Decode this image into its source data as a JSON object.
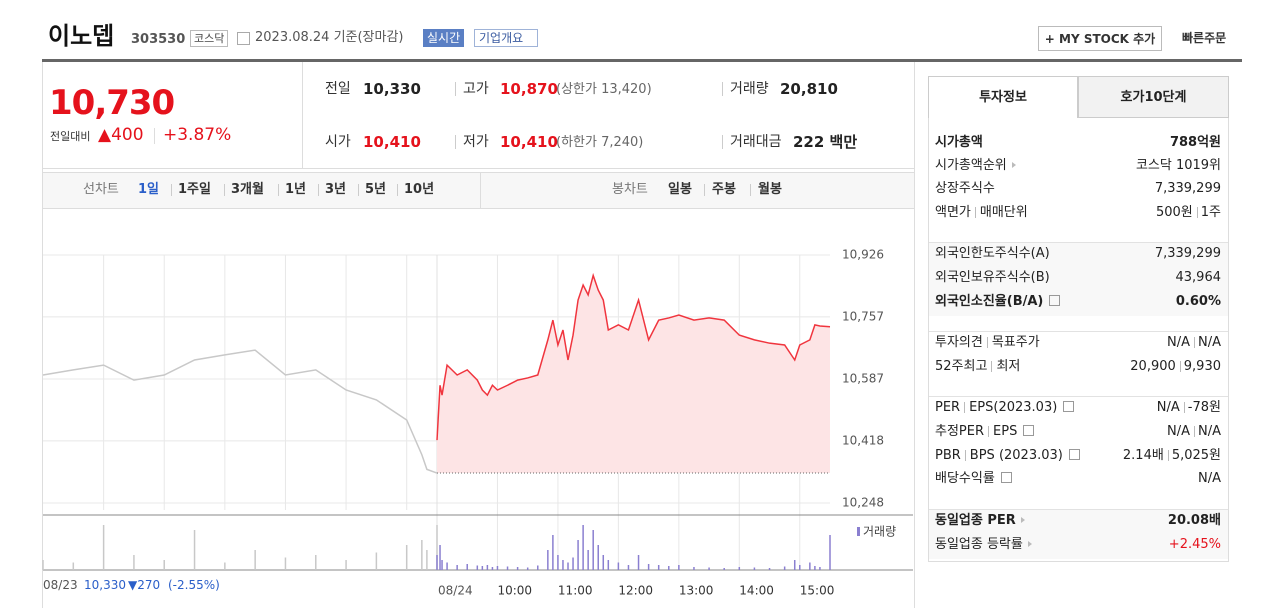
{
  "header": {
    "name": "이노뎁",
    "code": "303530",
    "market": "코스닥",
    "date": "2023.08.24 기준(장마감)",
    "realtime": "실시간",
    "company": "기업개요",
    "my_stock": "+ MY STOCK 추가",
    "quick_order": "빠른주문"
  },
  "price": {
    "current": "10,730",
    "change_label": "전일대비",
    "change": "▲400",
    "rate": "+3.87%"
  },
  "summary": {
    "rows": [
      [
        {
          "label": "전일",
          "value": "10,330"
        },
        {
          "label": "고가",
          "value": "10,870",
          "extra": "(상한가 13,420)",
          "color": "#e5121c"
        },
        {
          "label": "거래량",
          "value": "20,810"
        }
      ],
      [
        {
          "label": "시가",
          "value": "10,410",
          "color": "#e5121c"
        },
        {
          "label": "저가",
          "value": "10,410",
          "extra": "(하한가 7,240)",
          "color": "#e5121c"
        },
        {
          "label": "거래대금",
          "value": "222 백만"
        }
      ]
    ]
  },
  "chart_tabs": {
    "line_label": "선차트",
    "line_periods": [
      "1일",
      "1주일",
      "3개월",
      "1년",
      "3년",
      "5년",
      "10년"
    ],
    "selected": 0,
    "candle_label": "봉차트",
    "candle_periods": [
      "일봉",
      "주봉",
      "월봉"
    ]
  },
  "chart": {
    "type": "line",
    "prev": {
      "x": [
        9,
        9.5,
        10,
        10.5,
        11,
        11.5,
        12,
        12.5,
        13,
        13.5,
        14,
        14.5,
        15,
        15.25,
        15.3333,
        15.5
      ],
      "values": [
        10598,
        10612,
        10625,
        10584,
        10598,
        10639,
        10653,
        10666,
        10598,
        10612,
        10557,
        10530,
        10475,
        10380,
        10340,
        10330
      ],
      "volume": [
        200,
        150,
        900,
        300,
        200,
        800,
        150,
        400,
        250,
        300,
        200,
        350,
        500,
        600,
        400,
        900
      ],
      "color": "#c8c8c8"
    },
    "today": {
      "x": [
        9,
        9.05,
        9.0833,
        9.1667,
        9.3333,
        9.5,
        9.6667,
        9.75,
        9.8333,
        9.9167,
        10,
        10.1667,
        10.3333,
        10.5,
        10.6667,
        10.8333,
        10.9167,
        11,
        11.0833,
        11.1667,
        11.25,
        11.3333,
        11.4167,
        11.5,
        11.5833,
        11.6667,
        11.75,
        11.8333,
        12,
        12.1667,
        12.3333,
        12.5,
        12.6667,
        12.8333,
        13,
        13.25,
        13.5,
        13.75,
        14,
        14.25,
        14.5,
        14.75,
        14.9167,
        15,
        15.1667,
        15.25,
        15.3333,
        15.5
      ],
      "values": [
        10420,
        10570,
        10543,
        10625,
        10598,
        10612,
        10584,
        10557,
        10543,
        10570,
        10557,
        10570,
        10584,
        10590,
        10598,
        10694,
        10748,
        10680,
        10721,
        10639,
        10707,
        10803,
        10844,
        10817,
        10870,
        10830,
        10803,
        10721,
        10735,
        10721,
        10803,
        10694,
        10748,
        10754,
        10762,
        10748,
        10754,
        10748,
        10707,
        10694,
        10685,
        10680,
        10639,
        10680,
        10694,
        10735,
        10732,
        10730
      ],
      "volume": [
        300,
        500,
        200,
        150,
        100,
        120,
        90,
        80,
        100,
        60,
        80,
        70,
        60,
        50,
        90,
        400,
        700,
        300,
        200,
        150,
        250,
        600,
        900,
        400,
        800,
        500,
        300,
        200,
        150,
        100,
        300,
        120,
        100,
        80,
        100,
        60,
        50,
        40,
        60,
        50,
        40,
        70,
        200,
        100,
        150,
        80,
        60,
        700
      ],
      "color": "#f0353e",
      "fill": "#fde4e5"
    },
    "base": 10330,
    "xlim": [
      9,
      15.5
    ],
    "xticks": [
      {
        "value": 10,
        "label": "10:00"
      },
      {
        "value": 11,
        "label": "11:00"
      },
      {
        "value": 12,
        "label": "12:00"
      },
      {
        "value": 13,
        "label": "13:00"
      },
      {
        "value": 14,
        "label": "14:00"
      },
      {
        "value": 15,
        "label": "15:00"
      }
    ],
    "prev_xticks": [
      10,
      11,
      12,
      13,
      14,
      15
    ],
    "day_label": "08/24",
    "ylim": [
      10229,
      10967
    ],
    "yticks": [
      {
        "value": 10926,
        "label": "10,926"
      },
      {
        "value": 10757,
        "label": "10,757"
      },
      {
        "value": 10587,
        "label": "10,587"
      },
      {
        "value": 10418,
        "label": "10,418"
      },
      {
        "value": 10248,
        "label": "10,248"
      }
    ],
    "grid": true,
    "volume_ylim": [
      0,
      1000
    ],
    "volume_color": "#8a7fd0",
    "volume_label": "거래량"
  },
  "footer": {
    "date": "08/23",
    "close": "10,330",
    "change": "▼270",
    "rate": "(-2.55%)"
  },
  "invest": {
    "tabs": [
      "투자정보",
      "호가10단계"
    ],
    "selected": 0,
    "sections": [
      {
        "rows": [
          {
            "label": [
              "시가총액"
            ],
            "value": [
              "788억원"
            ],
            "bold": true
          },
          {
            "label": [
              "시가총액순위"
            ],
            "value": [
              "코스닥 1019위"
            ],
            "link": true
          },
          {
            "label": [
              "상장주식수"
            ],
            "value": [
              "7,339,299"
            ]
          },
          {
            "label": [
              "액면가",
              "매매단위"
            ],
            "value": [
              "500원",
              "1주"
            ]
          }
        ]
      },
      {
        "shaded": true,
        "rows": [
          {
            "label": [
              "외국인한도주식수(A)"
            ],
            "value": [
              "7,339,299"
            ]
          },
          {
            "label": [
              "외국인보유주식수(B)"
            ],
            "value": [
              "43,964"
            ]
          },
          {
            "label": [
              "외국인소진율(B/A)"
            ],
            "value": [
              "0.60%"
            ],
            "bold": true,
            "help": true
          }
        ]
      },
      {
        "rows": [
          {
            "label": [
              "투자의견",
              "목표주가"
            ],
            "value": [
              "N/A",
              "N/A"
            ]
          },
          {
            "label": [
              "52주최고",
              "최저"
            ],
            "value": [
              "20,900",
              "9,930"
            ]
          }
        ]
      },
      {
        "rows": [
          {
            "label": [
              "PER",
              "EPS(2023.03)"
            ],
            "value": [
              "N/A",
              "-78원"
            ],
            "help": true
          },
          {
            "label": [
              "추정PER",
              "EPS"
            ],
            "value": [
              "N/A",
              "N/A"
            ],
            "help": true
          },
          {
            "label": [
              "PBR",
              "BPS (2023.03)"
            ],
            "value": [
              "2.14배",
              "5,025원"
            ],
            "help": true
          },
          {
            "label": [
              "배당수익률"
            ],
            "value": [
              "N/A"
            ],
            "help": true
          }
        ]
      },
      {
        "shaded": true,
        "rows": [
          {
            "label": [
              "동일업종 PER"
            ],
            "value": [
              "20.08배"
            ],
            "bold": true,
            "link": true
          },
          {
            "label": [
              "동일업종 등락률"
            ],
            "value": [
              "+2.45%"
            ],
            "link": true,
            "color": "#e5121c"
          }
        ]
      }
    ]
  }
}
